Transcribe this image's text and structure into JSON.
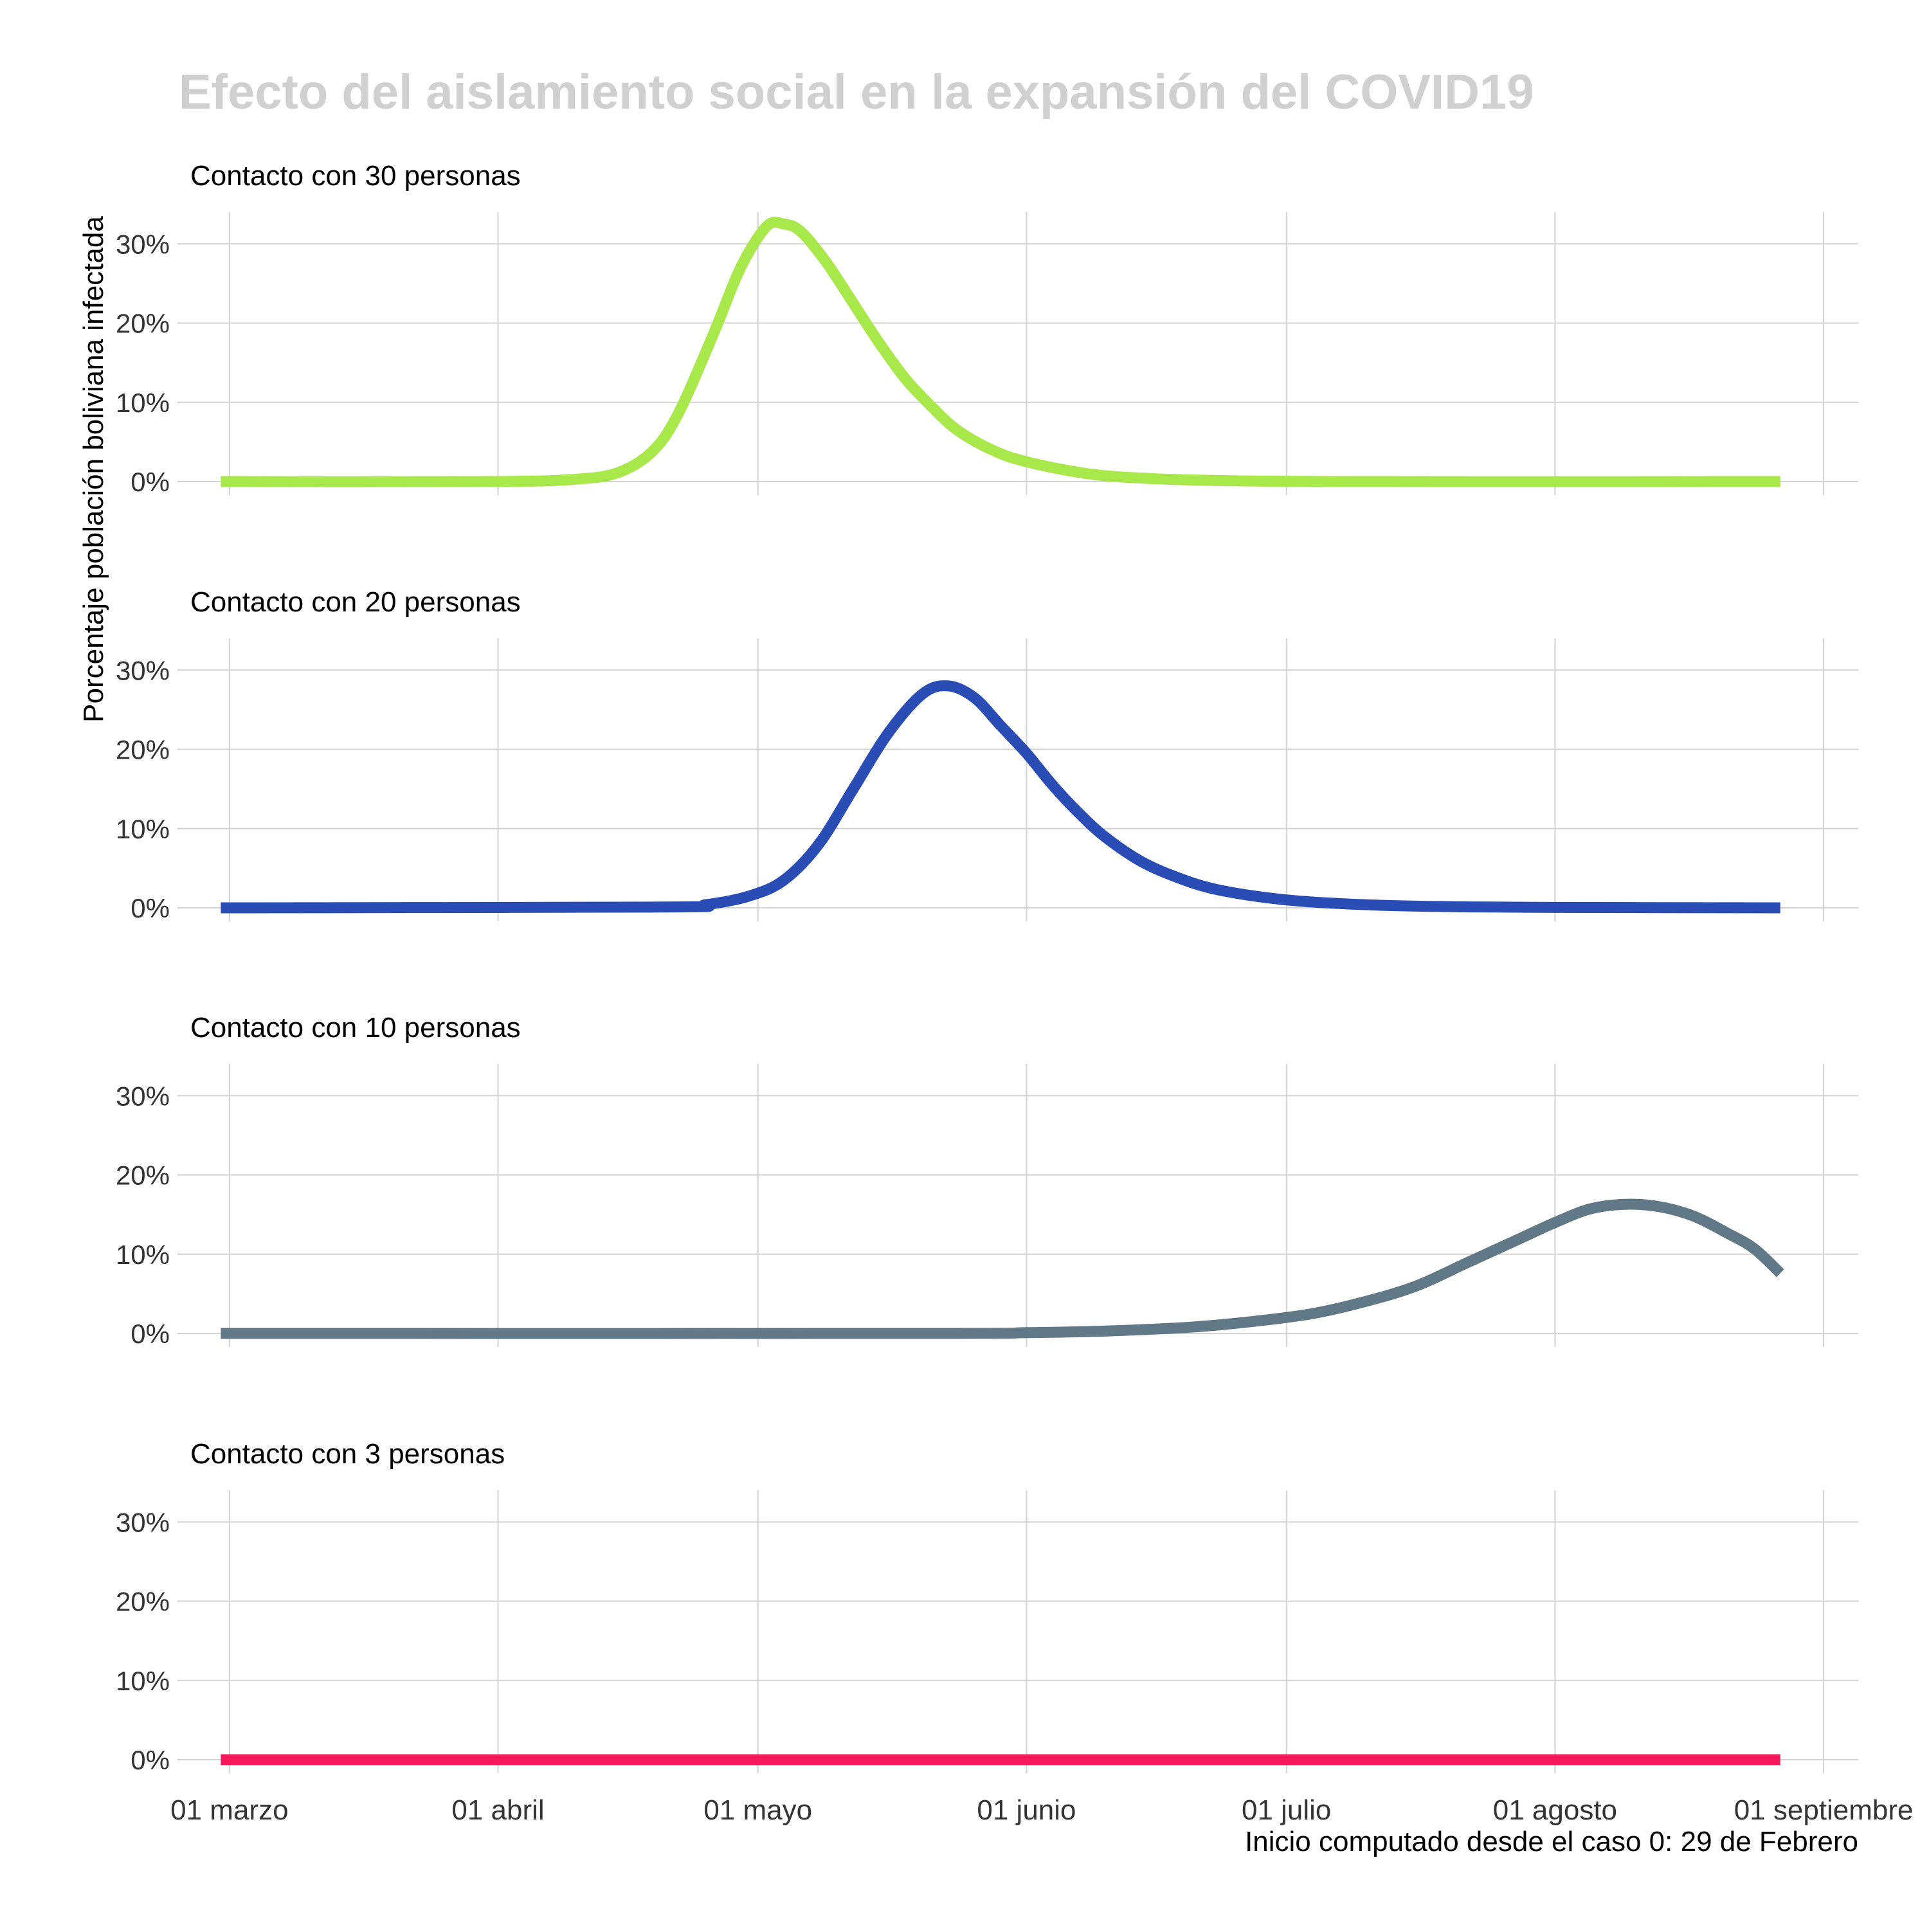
{
  "title": "Efecto del aislamiento social en la expansión del COVID19",
  "caption": "Inicio computado desde el caso 0: 29 de Febrero",
  "chart_data": {
    "type": "line",
    "ylabel": "Porcentaje población boliviana infectada",
    "xlabel": "",
    "x_ticks": [
      {
        "date": "2020-03-01",
        "label": "01 marzo"
      },
      {
        "date": "2020-04-01",
        "label": "01 abril"
      },
      {
        "date": "2020-05-01",
        "label": "01 mayo"
      },
      {
        "date": "2020-06-01",
        "label": "01 junio"
      },
      {
        "date": "2020-07-01",
        "label": "01 julio"
      },
      {
        "date": "2020-08-01",
        "label": "01 agosto"
      },
      {
        "date": "2020-09-01",
        "label": "01 septiembre"
      }
    ],
    "xlim": [
      "2020-02-24",
      "2020-09-05"
    ],
    "y_ticks": [
      0,
      10,
      20,
      30
    ],
    "y_tick_labels": [
      "0%",
      "10%",
      "20%",
      "30%"
    ],
    "ylim": [
      -1.7,
      34
    ],
    "grid": true,
    "legend": "none",
    "panels": [
      {
        "title": "Contacto con 30 personas",
        "color": "#a8e84a",
        "points": [
          [
            "2020-02-29",
            0
          ],
          [
            "2020-03-31",
            0
          ],
          [
            "2020-04-10",
            0.3
          ],
          [
            "2020-04-15",
            1.2
          ],
          [
            "2020-04-19",
            4
          ],
          [
            "2020-04-22",
            9
          ],
          [
            "2020-04-26",
            19
          ],
          [
            "2020-04-29",
            27
          ],
          [
            "2020-05-02",
            32.2
          ],
          [
            "2020-05-04",
            32.5
          ],
          [
            "2020-05-06",
            31.5
          ],
          [
            "2020-05-09",
            27.5
          ],
          [
            "2020-05-12",
            22.5
          ],
          [
            "2020-05-15",
            17.5
          ],
          [
            "2020-05-18",
            13
          ],
          [
            "2020-05-21",
            9.5
          ],
          [
            "2020-05-24",
            6.5
          ],
          [
            "2020-05-28",
            4
          ],
          [
            "2020-06-01",
            2.5
          ],
          [
            "2020-06-08",
            1
          ],
          [
            "2020-06-15",
            0.4
          ],
          [
            "2020-06-25",
            0.1
          ],
          [
            "2020-07-10",
            0
          ],
          [
            "2020-08-27",
            0
          ]
        ]
      },
      {
        "title": "Contacto con 20 personas",
        "color": "#2a4db5",
        "points": [
          [
            "2020-02-29",
            0
          ],
          [
            "2020-04-20",
            0.1
          ],
          [
            "2020-04-25",
            0.4
          ],
          [
            "2020-04-30",
            1.5
          ],
          [
            "2020-05-04",
            3.5
          ],
          [
            "2020-05-08",
            8
          ],
          [
            "2020-05-12",
            15
          ],
          [
            "2020-05-16",
            22
          ],
          [
            "2020-05-20",
            27
          ],
          [
            "2020-05-23",
            28
          ],
          [
            "2020-05-26",
            26.5
          ],
          [
            "2020-05-29",
            23
          ],
          [
            "2020-06-01",
            19.5
          ],
          [
            "2020-06-04",
            15.5
          ],
          [
            "2020-06-07",
            12
          ],
          [
            "2020-06-10",
            9
          ],
          [
            "2020-06-14",
            6
          ],
          [
            "2020-06-18",
            4
          ],
          [
            "2020-06-23",
            2.3
          ],
          [
            "2020-07-01",
            1
          ],
          [
            "2020-07-10",
            0.4
          ],
          [
            "2020-07-20",
            0.15
          ],
          [
            "2020-08-01",
            0.05
          ],
          [
            "2020-08-27",
            0
          ]
        ]
      },
      {
        "title": "Contacto con 10 personas",
        "color": "#617887",
        "points": [
          [
            "2020-02-29",
            0
          ],
          [
            "2020-05-20",
            0
          ],
          [
            "2020-06-01",
            0.1
          ],
          [
            "2020-06-10",
            0.3
          ],
          [
            "2020-06-20",
            0.8
          ],
          [
            "2020-06-27",
            1.5
          ],
          [
            "2020-07-04",
            2.5
          ],
          [
            "2020-07-10",
            4
          ],
          [
            "2020-07-16",
            6
          ],
          [
            "2020-07-22",
            9
          ],
          [
            "2020-07-28",
            12
          ],
          [
            "2020-08-01",
            14
          ],
          [
            "2020-08-05",
            15.7
          ],
          [
            "2020-08-09",
            16.3
          ],
          [
            "2020-08-13",
            16
          ],
          [
            "2020-08-17",
            14.8
          ],
          [
            "2020-08-21",
            12.6
          ],
          [
            "2020-08-24",
            10.7
          ],
          [
            "2020-08-27",
            7.6
          ]
        ]
      },
      {
        "title": "Contacto con 3 personas",
        "color": "#f5185a",
        "points": [
          [
            "2020-02-29",
            0
          ],
          [
            "2020-08-27",
            0
          ]
        ]
      }
    ]
  }
}
